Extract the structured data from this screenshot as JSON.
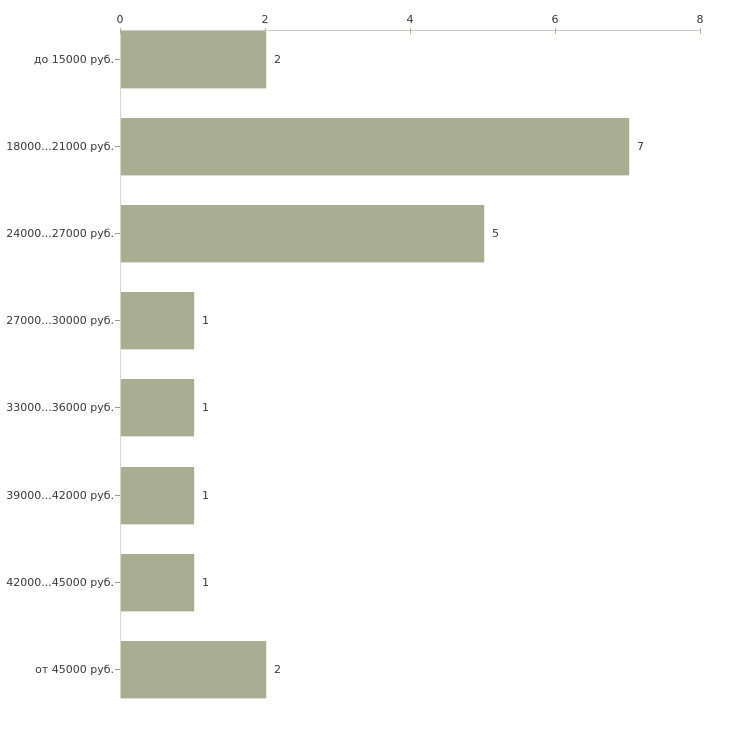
{
  "page": {
    "background": "#ffffff"
  },
  "chart_data": {
    "type": "bar",
    "orientation": "horizontal",
    "title": "",
    "categories": [
      "до 15000 руб.",
      "18000...21000 руб.",
      "24000...27000 руб.",
      "27000...30000 руб.",
      "33000...36000 руб.",
      "39000...42000 руб.",
      "42000...45000 руб.",
      "от 45000 руб."
    ],
    "values": [
      2,
      7,
      5,
      1,
      1,
      1,
      1,
      2
    ],
    "value_labels": [
      "2",
      "7",
      "5",
      "1",
      "1",
      "1",
      "1",
      "2"
    ],
    "xlabel": "",
    "ylabel": "",
    "xlim": [
      0,
      8
    ],
    "x_ticks": [
      0,
      2,
      4,
      6,
      8
    ],
    "x_tick_labels": [
      "0",
      "2",
      "4",
      "6",
      "8"
    ],
    "axis_position": "top",
    "grid": false,
    "legend": false,
    "colors": {
      "bar": "#a9ae93",
      "axis_line": "#cccccc",
      "tick_mark": "#b3b39b",
      "text": "#3a3a3a",
      "category_tick": "#999999"
    }
  }
}
